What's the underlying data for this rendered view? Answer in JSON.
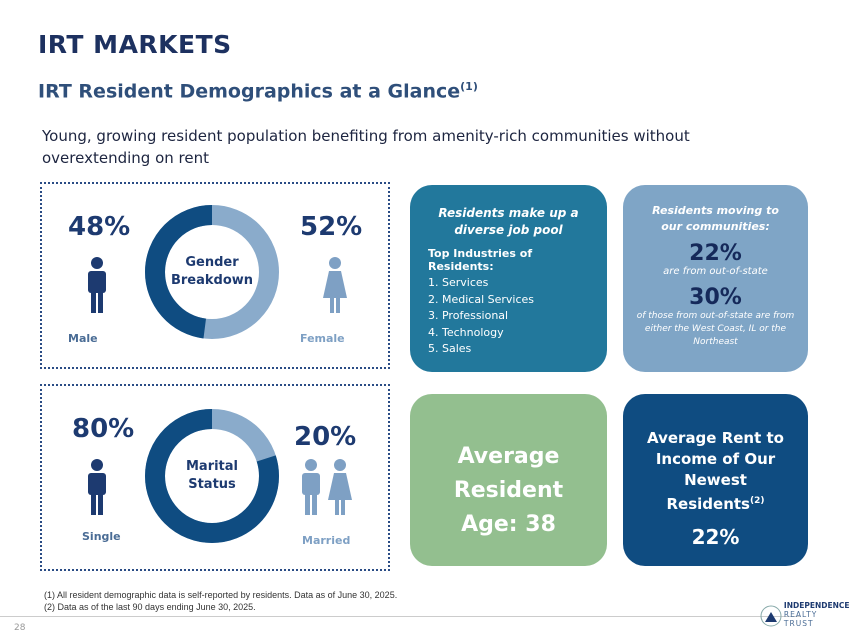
{
  "header": {
    "section": "IRT MARKETS",
    "title": "IRT Resident Demographics at a Glance",
    "title_note": "(1)",
    "subtitle": "Young, growing resident population benefiting from amenity-rich communities without overextending on rent"
  },
  "gender": {
    "left_pct": "48%",
    "right_pct": "52%",
    "center": [
      "Gender",
      "Breakdown"
    ],
    "left_label": "Male",
    "right_label": "Female",
    "male_fraction": 0.48
  },
  "marital": {
    "left_pct": "80%",
    "right_pct": "20%",
    "center": [
      "Marital",
      "Status"
    ],
    "left_label": "Single",
    "right_label": "Married",
    "single_fraction": 0.8
  },
  "jobs": {
    "title": "Residents make up a diverse job pool",
    "heading": "Top Industries of Residents:",
    "items": [
      "1.  Services",
      "2.  Medical Services",
      "3.  Professional",
      "4.  Technology",
      "5.  Sales"
    ]
  },
  "moving": {
    "title": "Residents moving to our communities:",
    "pct1": "22%",
    "text1": "are from out-of-state",
    "pct2": "30%",
    "text2": "of those from out-of-state are from either the West Coast, IL or the Northeast"
  },
  "age": {
    "lines": [
      "Average",
      "Resident",
      "Age: 38"
    ]
  },
  "rent": {
    "lines": [
      "Average Rent to",
      "Income of Our",
      "Newest",
      "Residents"
    ],
    "note": "(2)",
    "value": "22%"
  },
  "footnotes": [
    "(1)   All resident demographic data is self-reported by residents. Data as of June 30, 2025.",
    "(2)   Data as of the last 90 days ending June 30, 2025."
  ],
  "page_number": "28",
  "logo": {
    "line1": "INDEPENDENCE",
    "line2": "REALTY TRUST"
  },
  "colors": {
    "dark": "#0f4c81",
    "light": "#8aabcb",
    "teal": "#22789c",
    "green": "#93bf8f"
  }
}
